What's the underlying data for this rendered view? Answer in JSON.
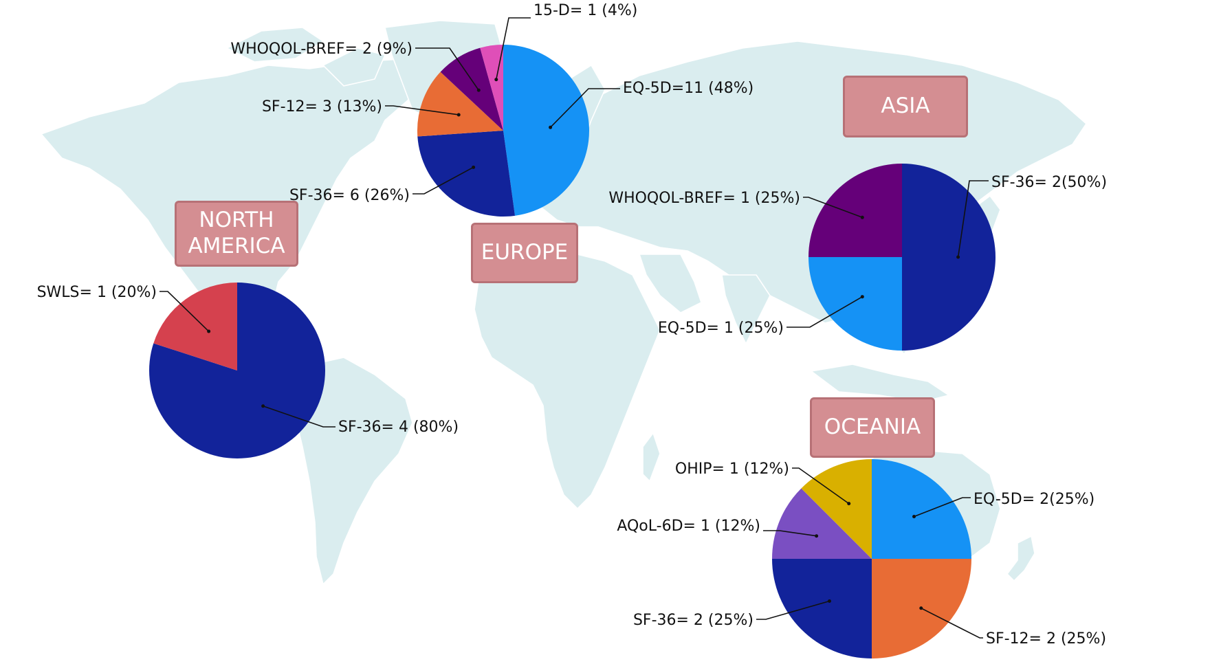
{
  "regions": {
    "north_america": "NORTH\nAMERICA",
    "europe": "EUROPE",
    "asia": "ASIA",
    "oceania": "OCEANIA"
  },
  "colors": {
    "land": "#daedef",
    "region_box": "#d48e92",
    "SF-36": "#12239a",
    "EQ-5D": "#1592f5",
    "SF-12": "#e86c35",
    "WHOQOL-BREF": "#650079",
    "15-D": "#df4fb8",
    "SWLS": "#d5414e",
    "OHIP": "#d9b000",
    "AQoL-6D": "#7a4fc2"
  },
  "chart_data": [
    {
      "type": "pie",
      "region": "Europe",
      "slices": [
        {
          "name": "EQ-5D",
          "value": 11,
          "percent": 48,
          "label": "EQ-5D=11 (48%)"
        },
        {
          "name": "SF-36",
          "value": 6,
          "percent": 26,
          "label": "SF-36= 6 (26%)"
        },
        {
          "name": "SF-12",
          "value": 3,
          "percent": 13,
          "label": "SF-12= 3 (13%)"
        },
        {
          "name": "WHOQOL-BREF",
          "value": 2,
          "percent": 9,
          "label": "WHOQOL-BREF= 2 (9%)"
        },
        {
          "name": "15-D",
          "value": 1,
          "percent": 4,
          "label": "15-D= 1 (4%)"
        }
      ]
    },
    {
      "type": "pie",
      "region": "North America",
      "slices": [
        {
          "name": "SF-36",
          "value": 4,
          "percent": 80,
          "label": "SF-36= 4 (80%)"
        },
        {
          "name": "SWLS",
          "value": 1,
          "percent": 20,
          "label": "SWLS= 1 (20%)"
        }
      ]
    },
    {
      "type": "pie",
      "region": "Asia",
      "slices": [
        {
          "name": "SF-36",
          "value": 2,
          "percent": 50,
          "label": "SF-36= 2(50%)"
        },
        {
          "name": "EQ-5D",
          "value": 1,
          "percent": 25,
          "label": "EQ-5D= 1 (25%)"
        },
        {
          "name": "WHOQOL-BREF",
          "value": 1,
          "percent": 25,
          "label": "WHOQOL-BREF= 1 (25%)"
        }
      ]
    },
    {
      "type": "pie",
      "region": "Oceania",
      "slices": [
        {
          "name": "EQ-5D",
          "value": 2,
          "percent": 25,
          "label": "EQ-5D= 2(25%)"
        },
        {
          "name": "SF-12",
          "value": 2,
          "percent": 25,
          "label": "SF-12= 2 (25%)"
        },
        {
          "name": "SF-36",
          "value": 2,
          "percent": 25,
          "label": "SF-36= 2 (25%)"
        },
        {
          "name": "AQoL-6D",
          "value": 1,
          "percent": 12,
          "label": "AQoL-6D= 1 (12%)"
        },
        {
          "name": "OHIP",
          "value": 1,
          "percent": 12,
          "label": "OHIP= 1 (12%)"
        }
      ]
    }
  ]
}
